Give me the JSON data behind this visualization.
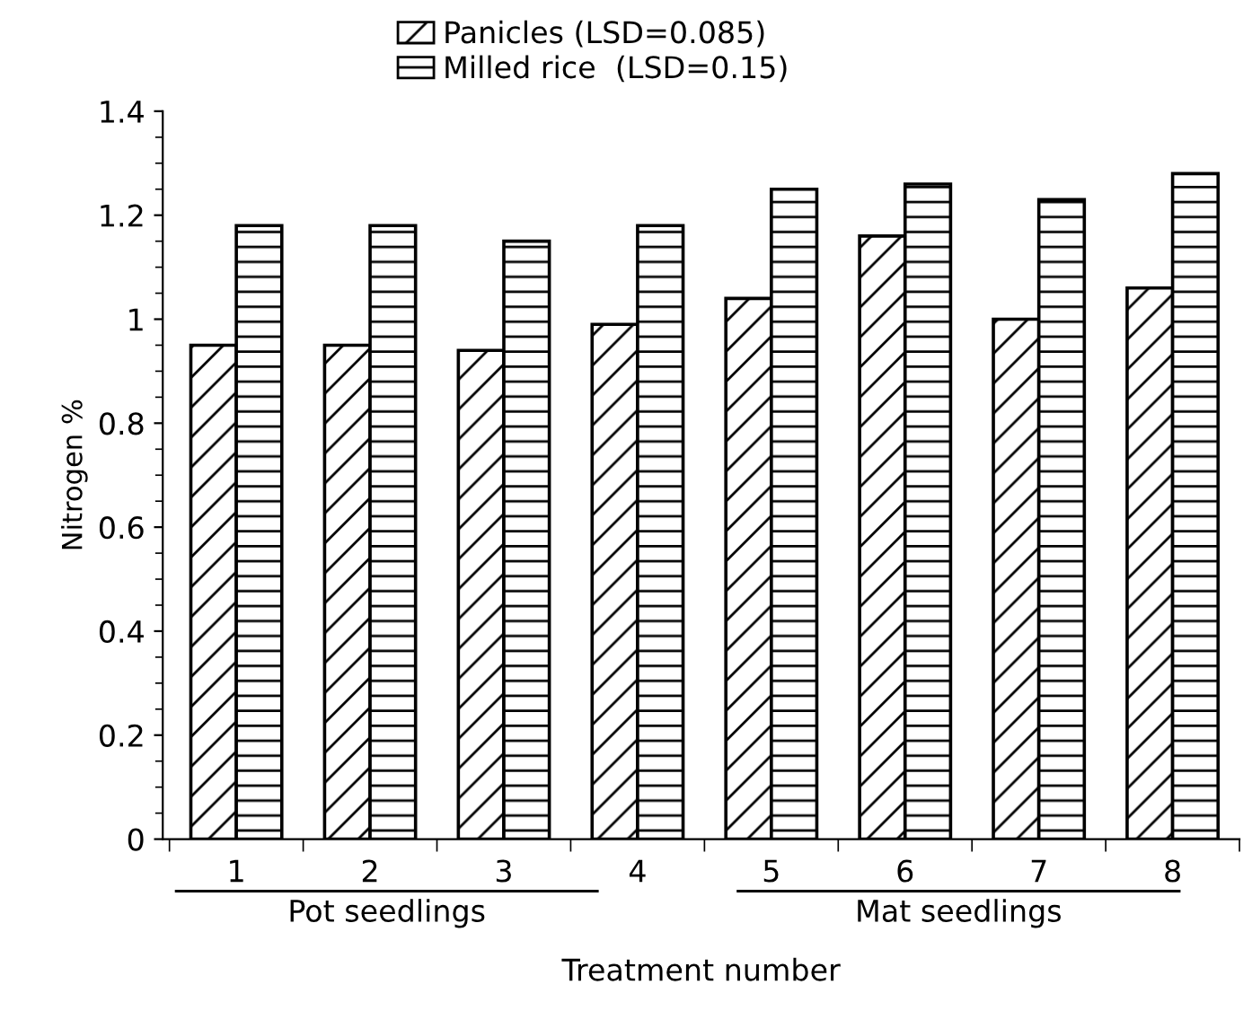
{
  "chart_data": {
    "type": "bar",
    "xlabel": "Treatment number",
    "ylabel": "Nitrogen %",
    "categories": [
      "1",
      "2",
      "3",
      "4",
      "5",
      "6",
      "7",
      "8"
    ],
    "series": [
      {
        "name": "Panicles (LSD=0.085)",
        "color": "#000000",
        "values": [
          0.95,
          0.95,
          0.94,
          0.99,
          1.04,
          1.16,
          1.0,
          1.06
        ]
      },
      {
        "name": "Milled rice  (LSD=0.15)",
        "color": "#000000",
        "values": [
          1.18,
          1.18,
          1.15,
          1.18,
          1.25,
          1.26,
          1.23,
          1.28
        ]
      }
    ],
    "ylim": [
      0,
      1.4
    ],
    "yticks": [
      0,
      0.2,
      0.4,
      0.6,
      0.8,
      1,
      1.2,
      1.4
    ],
    "annotations": [
      "Pot seedlings",
      "Mat seedlings"
    ],
    "grid": false,
    "legend": "top"
  }
}
